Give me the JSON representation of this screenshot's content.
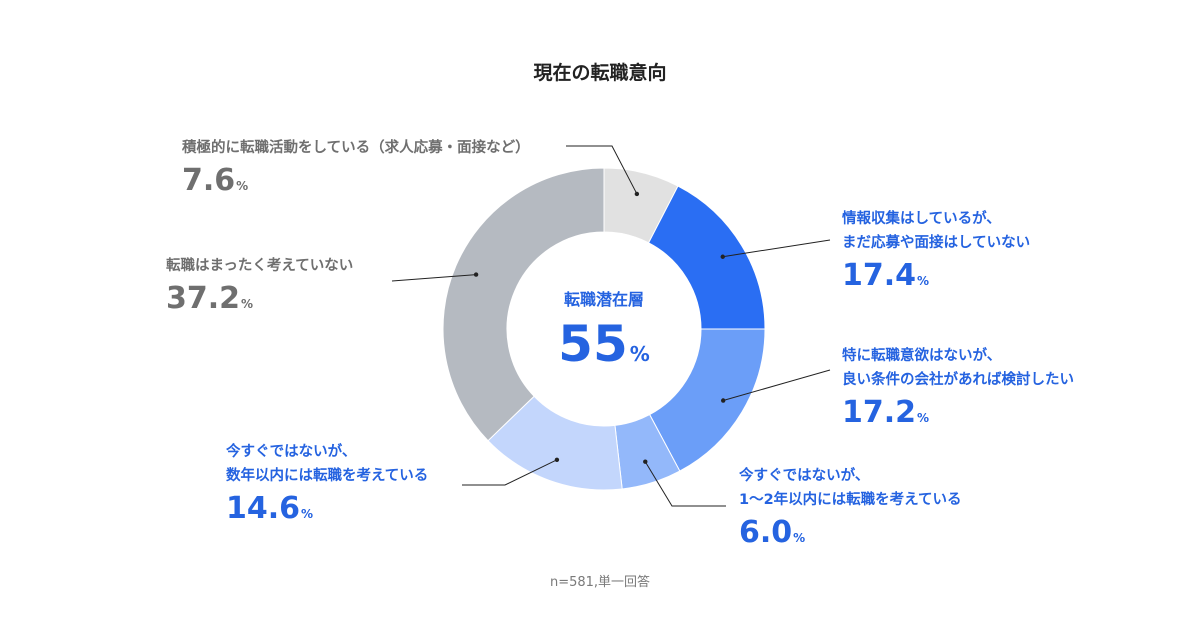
{
  "chart_data": {
    "type": "pie",
    "title": "現在の転職意向",
    "center_label": "転職潜在層",
    "center_value": "55",
    "center_unit": "%",
    "note": "n=581,単一回答",
    "unit": "%",
    "slices": [
      {
        "label_lines": [
          "積極的に転職活動をしている（求人応募・面接など）"
        ],
        "value": 7.6,
        "display": "7.6",
        "color": "#e1e1e1"
      },
      {
        "label_lines": [
          "情報収集はしているが、",
          "まだ応募や面接はしていない"
        ],
        "value": 17.4,
        "display": "17.4",
        "color": "#2a6ef3"
      },
      {
        "label_lines": [
          "特に転職意欲はないが、",
          "良い条件の会社があれば検討したい"
        ],
        "value": 17.2,
        "display": "17.2",
        "color": "#6b9ef8"
      },
      {
        "label_lines": [
          "今すぐではないが、",
          "1〜2年以内には転職を考えている"
        ],
        "value": 6.0,
        "display": "6.0",
        "color": "#93b8fa"
      },
      {
        "label_lines": [
          "今すぐではないが、",
          "数年以内には転職を考えている"
        ],
        "value": 14.6,
        "display": "14.6",
        "color": "#c3d6fc"
      },
      {
        "label_lines": [
          "転職はまったく考えていない"
        ],
        "value": 37.2,
        "display": "37.2",
        "color": "#b5bac1"
      }
    ]
  }
}
